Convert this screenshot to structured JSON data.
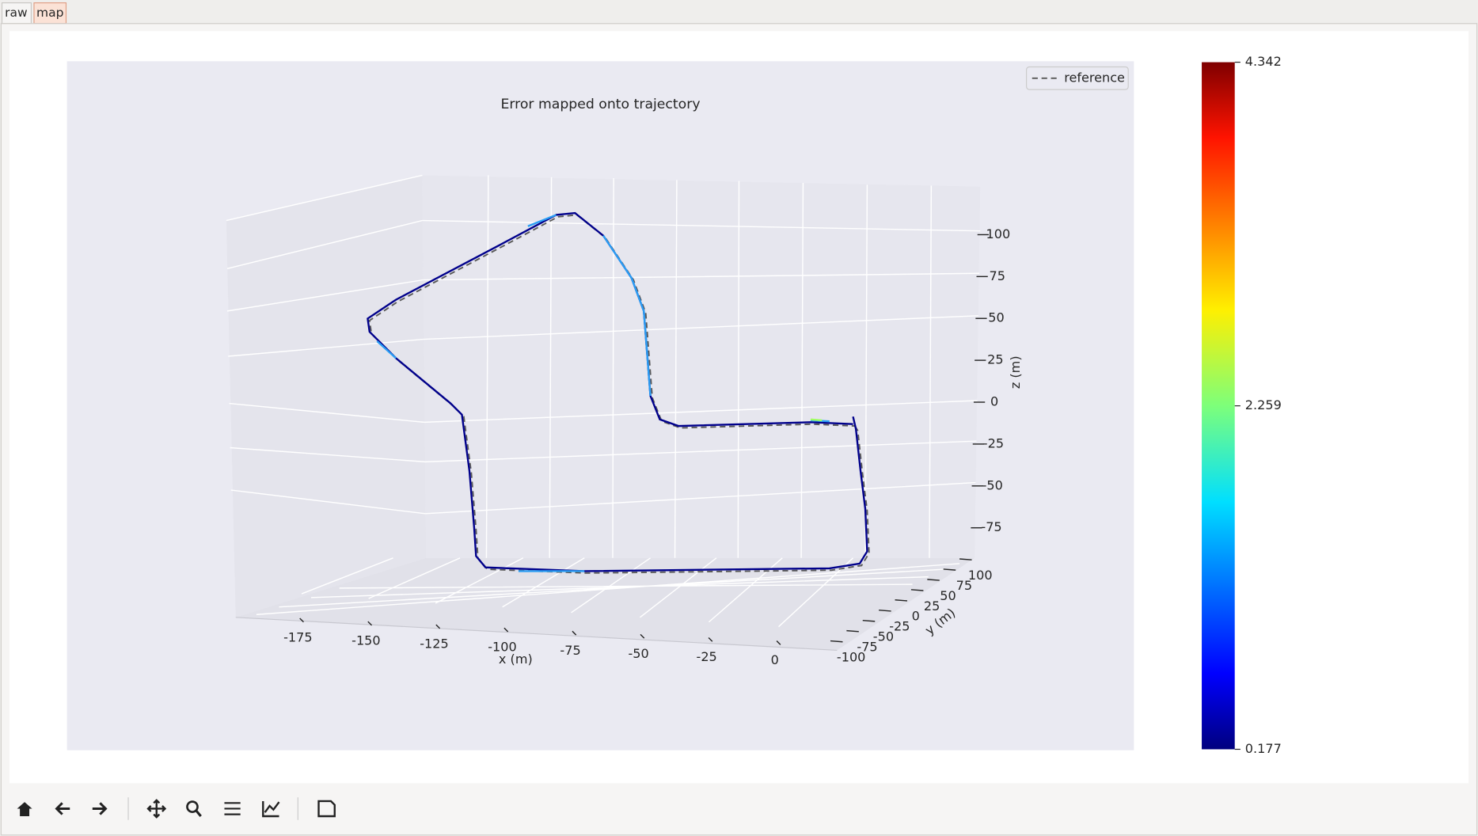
{
  "tabs": [
    "raw",
    "map"
  ],
  "chart_data": {
    "type": "line3d",
    "title": "Error mapped onto trajectory",
    "series": [
      {
        "name": "reference",
        "color": "#595959",
        "style": "dashed"
      }
    ],
    "xlabel": "x (m)",
    "ylabel": "y (m)",
    "zlabel": "z (m)",
    "xticks": [
      -175,
      -150,
      -125,
      -100,
      -75,
      -50,
      -25,
      0
    ],
    "yticks": [
      -100,
      -75,
      -50,
      -25,
      0,
      25,
      50,
      75,
      100
    ],
    "zticks": [
      -75,
      -50,
      -25,
      0,
      25,
      50,
      75,
      100
    ],
    "colorbar": {
      "cmap": "jet",
      "clim": [
        0.177,
        4.342
      ],
      "ticks": [
        0.177,
        2.259,
        4.342
      ]
    }
  }
}
